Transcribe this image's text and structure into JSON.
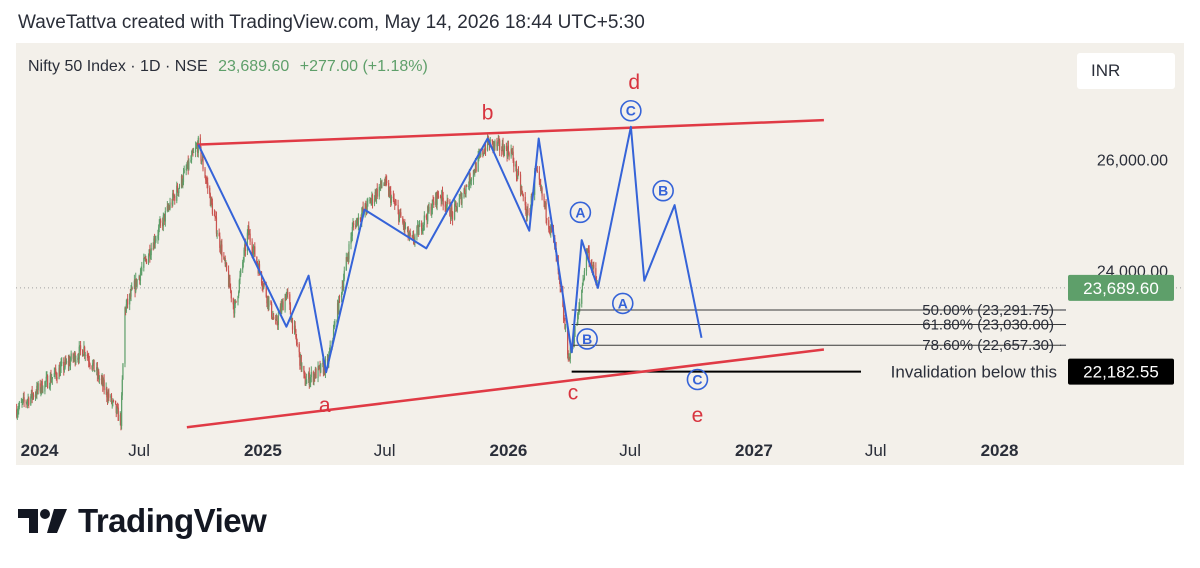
{
  "header": {
    "attribution": "WaveTattva created with TradingView.com, May 14, 2026 18:44 UTC+5:30"
  },
  "legend": {
    "symbol": "Nifty 50 Index · 1D · NSE",
    "price": "23,689.60",
    "change": "+277.00 (+1.18%)"
  },
  "currency": "INR",
  "brand": {
    "name": "TradingView"
  },
  "colors": {
    "background": "#f3f0ea",
    "wave_line": "#3563d8",
    "trendline": "#e03a45",
    "wave_label": "#d8343f",
    "candle_up": "#5e9f6a",
    "candle_down": "#c8534f",
    "current_price": "#5e9f6a"
  },
  "chart_data": {
    "type": "candlestick",
    "x_tick_labels": [
      "2024",
      "Jul",
      "2025",
      "Jul",
      "2026",
      "Jul",
      "2027",
      "Jul",
      "2028"
    ],
    "x_tick_dates": [
      "2024-01",
      "2024-07",
      "2025-01",
      "2025-07",
      "2026-01",
      "2026-07",
      "2027-01",
      "2027-07",
      "2028-01"
    ],
    "y_ticks": [
      {
        "value": 26000,
        "label": "26,000.00"
      },
      {
        "value": 24000,
        "label": "24,000.00"
      }
    ],
    "y_range": [
      20500,
      28100
    ],
    "x_range": [
      "2023-12-31",
      "2028-03-25"
    ],
    "current_price": {
      "value": 23689.6,
      "label": "23,689.60"
    },
    "invalidation": {
      "value": 22182.55,
      "label": "22,182.55",
      "text": "Invalidation below this"
    },
    "fib_levels": [
      {
        "value": 23291.75,
        "label": "50.00% (23,291.75)"
      },
      {
        "value": 23030.0,
        "label": "61.80% (23,030.00)"
      },
      {
        "value": 22657.3,
        "label": "78.60% (22,657.30)"
      }
    ],
    "trendlines": [
      {
        "from": {
          "date": "2024-09-25",
          "value": 26270
        },
        "to": {
          "date": "2027-04-15",
          "value": 26710
        }
      },
      {
        "from": {
          "date": "2024-09-10",
          "value": 21180
        },
        "to": {
          "date": "2027-04-15",
          "value": 22580
        }
      }
    ],
    "wave_path": [
      {
        "date": "2024-09-27",
        "value": 26270
      },
      {
        "date": "2025-02-05",
        "value": 22990
      },
      {
        "date": "2025-03-10",
        "value": 23910
      },
      {
        "date": "2025-04-05",
        "value": 22170
      },
      {
        "date": "2025-06-01",
        "value": 25100
      },
      {
        "date": "2025-09-01",
        "value": 24400
      },
      {
        "date": "2025-12-01",
        "value": 26380
      },
      {
        "date": "2026-02-01",
        "value": 24720
      },
      {
        "date": "2026-02-15",
        "value": 26380
      },
      {
        "date": "2026-04-05",
        "value": 22530
      },
      {
        "date": "2026-04-20",
        "value": 24550
      },
      {
        "date": "2026-05-14",
        "value": 23690
      },
      {
        "date": "2026-07-02",
        "value": 26590
      },
      {
        "date": "2026-07-22",
        "value": 23820
      },
      {
        "date": "2026-09-05",
        "value": 25180
      },
      {
        "date": "2026-10-15",
        "value": 22790
      }
    ],
    "wave_labels": [
      {
        "text": "a",
        "date": "2025-04-03",
        "value": 21580,
        "style": "letter"
      },
      {
        "text": "b",
        "date": "2025-12-01",
        "value": 26850,
        "style": "letter"
      },
      {
        "text": "c",
        "date": "2026-04-07",
        "value": 21810,
        "style": "letter"
      },
      {
        "text": "d",
        "date": "2026-07-07",
        "value": 27400,
        "style": "letter"
      },
      {
        "text": "e",
        "date": "2026-10-09",
        "value": 21400,
        "style": "letter"
      },
      {
        "text": "C",
        "date": "2026-07-02",
        "value": 26880,
        "style": "circled"
      },
      {
        "text": "A",
        "date": "2026-04-18",
        "value": 25050,
        "style": "circled"
      },
      {
        "text": "B",
        "date": "2026-08-19",
        "value": 25440,
        "style": "circled"
      },
      {
        "text": "A",
        "date": "2026-06-20",
        "value": 23410,
        "style": "circled"
      },
      {
        "text": "B",
        "date": "2026-04-28",
        "value": 22770,
        "style": "circled"
      },
      {
        "text": "C",
        "date": "2026-10-09",
        "value": 22040,
        "style": "circled"
      }
    ],
    "price_anchors": [
      {
        "date": "2024-01-01",
        "value": 21500
      },
      {
        "date": "2024-02-15",
        "value": 22000
      },
      {
        "date": "2024-04-10",
        "value": 22600
      },
      {
        "date": "2024-06-04",
        "value": 21300
      },
      {
        "date": "2024-06-10",
        "value": 23300
      },
      {
        "date": "2024-07-25",
        "value": 24600
      },
      {
        "date": "2024-09-27",
        "value": 26270
      },
      {
        "date": "2024-11-20",
        "value": 23300
      },
      {
        "date": "2024-12-10",
        "value": 24700
      },
      {
        "date": "2025-01-20",
        "value": 23000
      },
      {
        "date": "2025-02-05",
        "value": 23600
      },
      {
        "date": "2025-03-04",
        "value": 22000
      },
      {
        "date": "2025-04-07",
        "value": 22300
      },
      {
        "date": "2025-05-15",
        "value": 24800
      },
      {
        "date": "2025-06-30",
        "value": 25600
      },
      {
        "date": "2025-08-10",
        "value": 24500
      },
      {
        "date": "2025-09-20",
        "value": 25400
      },
      {
        "date": "2025-10-10",
        "value": 25000
      },
      {
        "date": "2025-11-30",
        "value": 26300
      },
      {
        "date": "2026-01-05",
        "value": 26150
      },
      {
        "date": "2026-01-31",
        "value": 24900
      },
      {
        "date": "2026-02-10",
        "value": 25800
      },
      {
        "date": "2026-03-10",
        "value": 24500
      },
      {
        "date": "2026-04-01",
        "value": 22400
      },
      {
        "date": "2026-04-15",
        "value": 23200
      },
      {
        "date": "2026-04-28",
        "value": 24400
      },
      {
        "date": "2026-05-14",
        "value": 23690
      }
    ]
  }
}
